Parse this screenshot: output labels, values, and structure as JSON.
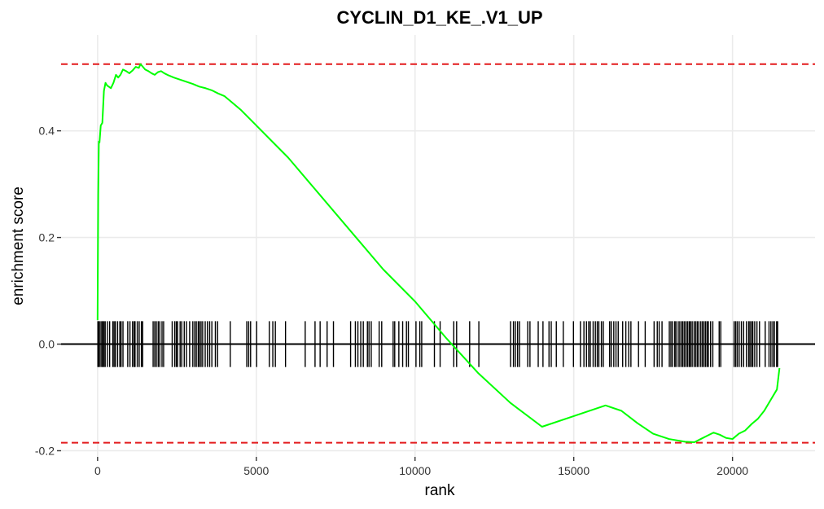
{
  "chart_data": {
    "type": "line",
    "title": "CYCLIN_D1_KE_.V1_UP",
    "xlabel": "rank",
    "ylabel": "enrichment score",
    "xlim": [
      -1150,
      22600
    ],
    "ylim": [
      -0.2115,
      0.5797
    ],
    "x_ticks": [
      0,
      5000,
      10000,
      15000,
      20000
    ],
    "x_tick_labels": [
      "0",
      "5000",
      "10000",
      "15000",
      "20000"
    ],
    "y_ticks": [
      -0.2,
      0.0,
      0.2,
      0.4
    ],
    "y_tick_labels": [
      "-0.2",
      "0.0",
      "0.2",
      "0.4"
    ],
    "grid": true,
    "max_es": 0.525,
    "min_es": -0.185,
    "colors": {
      "curve": "#00ff00",
      "ref_lines": "#e31a1c",
      "hits": "#000000",
      "grid": "#ebebeb"
    },
    "series": [
      {
        "x": [
          0,
          20,
          40,
          60,
          100,
          150,
          200,
          250,
          300,
          350,
          420,
          500,
          580,
          650,
          720,
          800,
          900,
          1000,
          1100,
          1200,
          1300,
          1350,
          1400,
          1500,
          1600,
          1700,
          1800,
          1900,
          2000,
          2100,
          2200,
          2400,
          2600,
          2800,
          3000,
          3200,
          3400,
          3600,
          3800,
          4000,
          4200,
          4500,
          5000,
          5500,
          6000,
          7000,
          8000,
          9000,
          10000,
          11000,
          12000,
          13000,
          14000,
          15000,
          16000,
          16500,
          17000,
          17500,
          18000,
          18500,
          18800,
          19000,
          19200,
          19400,
          19600,
          19800,
          20000,
          20200,
          20400,
          20600,
          20800,
          21000,
          21200,
          21400,
          21450,
          21480
        ],
        "y": [
          0.045,
          0.28,
          0.38,
          0.378,
          0.41,
          0.415,
          0.475,
          0.49,
          0.485,
          0.483,
          0.48,
          0.49,
          0.505,
          0.5,
          0.505,
          0.515,
          0.512,
          0.508,
          0.513,
          0.52,
          0.518,
          0.525,
          0.522,
          0.515,
          0.512,
          0.508,
          0.505,
          0.51,
          0.512,
          0.508,
          0.505,
          0.5,
          0.496,
          0.492,
          0.488,
          0.483,
          0.48,
          0.476,
          0.47,
          0.465,
          0.455,
          0.44,
          0.41,
          0.38,
          0.35,
          0.28,
          0.21,
          0.14,
          0.08,
          0.01,
          -0.055,
          -0.11,
          -0.155,
          -0.135,
          -0.115,
          -0.125,
          -0.148,
          -0.168,
          -0.178,
          -0.183,
          -0.184,
          -0.178,
          -0.172,
          -0.166,
          -0.17,
          -0.176,
          -0.178,
          -0.168,
          -0.162,
          -0.15,
          -0.14,
          -0.125,
          -0.105,
          -0.085,
          -0.06,
          -0.045
        ]
      }
    ],
    "hits": [
      10,
      40,
      80,
      130,
      160,
      200,
      240,
      310,
      380,
      480,
      520,
      560,
      630,
      700,
      740,
      800,
      950,
      1020,
      1100,
      1150,
      1180,
      1250,
      1310,
      1380,
      1420,
      1750,
      1800,
      1850,
      1910,
      1960,
      2030,
      2080,
      2350,
      2430,
      2480,
      2520,
      2600,
      2650,
      2730,
      2800,
      2900,
      3000,
      3060,
      3110,
      3170,
      3210,
      3260,
      3310,
      3390,
      3460,
      3530,
      3600,
      3710,
      3780,
      4180,
      4700,
      4760,
      4820,
      5010,
      5410,
      5520,
      5600,
      5920,
      6540,
      6850,
      7010,
      7230,
      7430,
      7970,
      8120,
      8200,
      8290,
      8370,
      8500,
      8550,
      8620,
      8870,
      8950,
      9310,
      9360,
      9490,
      9610,
      9730,
      9790,
      10030,
      10150,
      10210,
      10610,
      10790,
      11220,
      11310,
      11720,
      12010,
      13010,
      13100,
      13160,
      13230,
      13290,
      13550,
      13620,
      13880,
      14030,
      14220,
      14290,
      14450,
      14670,
      14990,
      15210,
      15320,
      15400,
      15470,
      15520,
      15610,
      15680,
      15740,
      15790,
      15870,
      15930,
      16130,
      16180,
      16260,
      16330,
      16400,
      16540,
      16640,
      16730,
      16800,
      17040,
      17250,
      17530,
      17630,
      17690,
      17780,
      18010,
      18060,
      18110,
      18180,
      18220,
      18290,
      18340,
      18400,
      18440,
      18490,
      18540,
      18590,
      18640,
      18680,
      18730,
      18790,
      18840,
      18890,
      18940,
      19000,
      19050,
      19100,
      19150,
      19200,
      19240,
      19310,
      19380,
      19580,
      19630,
      20050,
      20100,
      20150,
      20210,
      20280,
      20350,
      20440,
      20510,
      20550,
      20600,
      20640,
      20700,
      20770,
      20850,
      21030,
      21150,
      21210,
      21270,
      21320,
      21390,
      21420
    ]
  }
}
